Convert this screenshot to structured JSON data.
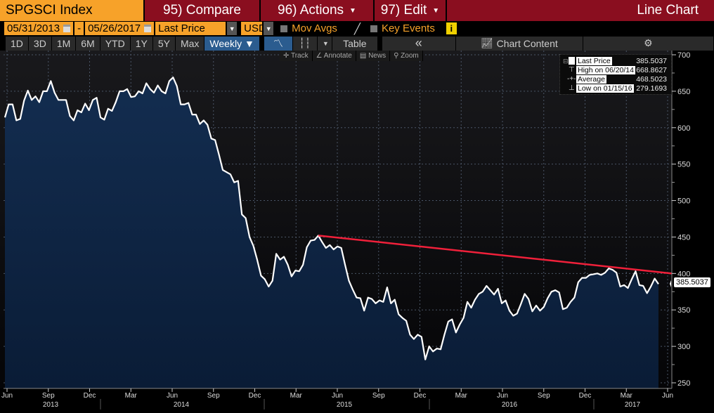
{
  "header": {
    "ticker": "SPGSCI Index",
    "compare": "95) Compare",
    "actions": "96) Actions",
    "edit": "97) Edit",
    "view": "Line Chart"
  },
  "controls": {
    "start_date": "05/31/2013",
    "dash": "-",
    "end_date": "05/26/2017",
    "field": "Last Price",
    "currency": "USD",
    "mov_avgs": "Mov Avgs",
    "key_events": "Key Events",
    "info": "i"
  },
  "toolbar": {
    "periods": [
      "1D",
      "3D",
      "1M",
      "6M",
      "YTD",
      "1Y",
      "5Y",
      "Max"
    ],
    "frequency": "Weekly ▼",
    "table": "Table",
    "collapse": "«",
    "chart_content": "Chart Content",
    "settings": "⚙"
  },
  "subtools": {
    "track": "✛ Track",
    "annotate": "∠ Annotate",
    "news": "▤ News",
    "zoom": "⚲ Zoom"
  },
  "legend": [
    {
      "label": "Last Price",
      "value": "385.5037"
    },
    {
      "label": "High on 06/20/14",
      "value": "668.8627"
    },
    {
      "label": "Average",
      "value": "468.5023"
    },
    {
      "label": "Low on 01/15/16",
      "value": "279.1693"
    }
  ],
  "last_tag": "385.5037",
  "colors": {
    "line": "#ffffff",
    "fill_top": "#132d50",
    "fill_bottom": "#0a1c36",
    "trend": "#f0203a",
    "header_red": "#8a0e1f",
    "orange": "#f7a229"
  },
  "chart_data": {
    "type": "area",
    "title": "SPGSCI Index",
    "frequency": "Weekly",
    "ylim": [
      250,
      700
    ],
    "yticks": [
      250,
      300,
      350,
      400,
      450,
      500,
      550,
      600,
      650,
      700
    ],
    "xtick_labels": [
      "Jun",
      "Sep",
      "Dec",
      "Mar",
      "Jun",
      "Sep",
      "Dec",
      "Mar",
      "Jun",
      "Sep",
      "Dec",
      "Mar",
      "Jun",
      "Sep",
      "Dec",
      "Mar",
      "Jun"
    ],
    "year_labels": [
      "2013",
      "2014",
      "2015",
      "2016",
      "2017"
    ],
    "x_range": [
      "2013-06",
      "2017-06"
    ],
    "series": [
      {
        "name": "Last Price",
        "values": [
          614,
          632,
          632,
          610,
          612,
          637,
          651,
          638,
          643,
          635,
          650,
          650,
          664,
          648,
          638,
          638,
          638,
          616,
          610,
          624,
          621,
          633,
          624,
          638,
          641,
          614,
          611,
          626,
          623,
          635,
          650,
          650,
          653,
          642,
          643,
          650,
          647,
          661,
          653,
          648,
          658,
          650,
          647,
          664,
          669,
          657,
          632,
          632,
          634,
          618,
          618,
          605,
          610,
          604,
          585,
          583,
          563,
          542,
          539,
          536,
          525,
          527,
          481,
          476,
          450,
          438,
          419,
          397,
          392,
          382,
          390,
          427,
          419,
          423,
          412,
          396,
          404,
          403,
          412,
          436,
          445,
          446,
          452,
          443,
          435,
          439,
          433,
          437,
          435,
          412,
          390,
          378,
          367,
          366,
          349,
          367,
          365,
          359,
          363,
          361,
          381,
          359,
          364,
          344,
          339,
          335,
          316,
          310,
          316,
          313,
          282,
          300,
          293,
          297,
          296,
          316,
          334,
          337,
          319,
          330,
          339,
          361,
          353,
          364,
          372,
          375,
          383,
          377,
          371,
          379,
          359,
          363,
          349,
          342,
          345,
          358,
          372,
          365,
          348,
          356,
          349,
          354,
          366,
          375,
          377,
          374,
          351,
          353,
          361,
          367,
          388,
          394,
          394,
          398,
          399,
          400,
          398,
          401,
          407,
          405,
          401,
          382,
          384,
          380,
          392,
          403,
          384,
          383,
          373,
          382,
          393,
          385.5037
        ]
      }
    ],
    "trendline": {
      "start_value": 452,
      "end_value": 400,
      "color": "#f0203a"
    }
  }
}
